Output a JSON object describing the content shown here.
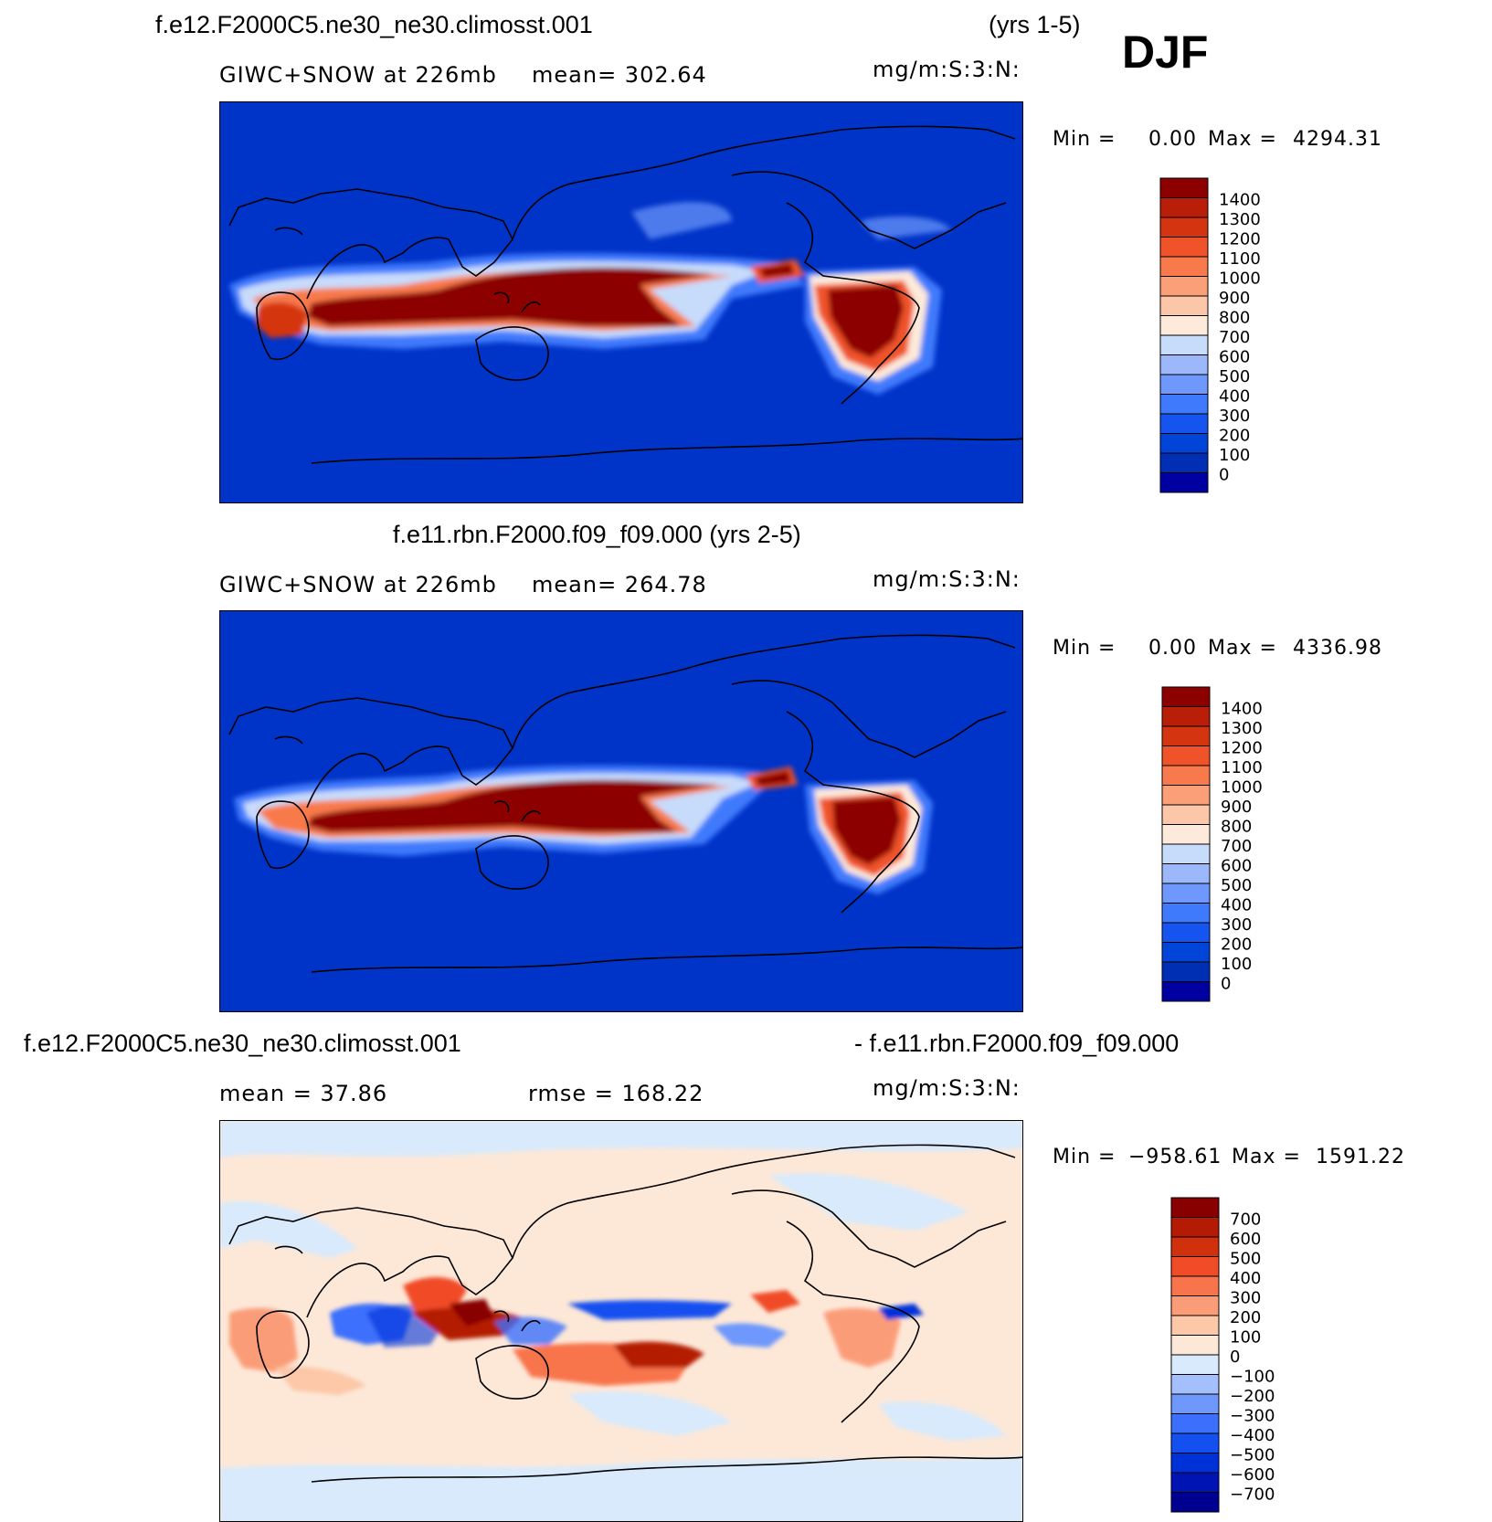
{
  "season": "DJF",
  "panels": [
    {
      "id": "p1",
      "case_title": "f.e12.F2000C5.ne30_ne30.climosst.001",
      "years": "(yrs 1-5)",
      "left_label": "GIWC+SNOW at 226mb",
      "center_label": "mean= 302.64",
      "units": "mg/m:S:3:N:",
      "min_label": "Min =",
      "min_value": "0.00",
      "max_label": "Max =",
      "max_value": "4294.31",
      "colorbar": {
        "colors": [
          "#0000a0",
          "#002fb4",
          "#0044d8",
          "#1654f0",
          "#3f7afc",
          "#6e98fc",
          "#9cb8fb",
          "#c7dcfb",
          "#fdeada",
          "#fcc6a8",
          "#fb9f78",
          "#f87a4c",
          "#f0522a",
          "#d43410",
          "#b81e08",
          "#8c0000"
        ],
        "labels": [
          "0",
          "100",
          "200",
          "300",
          "400",
          "500",
          "600",
          "700",
          "800",
          "900",
          "1000",
          "1100",
          "1200",
          "1300",
          "1400"
        ]
      }
    },
    {
      "id": "p2",
      "case_title": "f.e11.rbn.F2000.f09_f09.000 (yrs 2-5)",
      "left_label": "GIWC+SNOW at 226mb",
      "center_label": "mean= 264.78",
      "units": "mg/m:S:3:N:",
      "min_label": "Min =",
      "min_value": "0.00",
      "max_label": "Max =",
      "max_value": "4336.98",
      "colorbar": {
        "colors": [
          "#0000a0",
          "#002fb4",
          "#0044d8",
          "#1654f0",
          "#3f7afc",
          "#6e98fc",
          "#9cb8fb",
          "#c7dcfb",
          "#fdeada",
          "#fcc6a8",
          "#fb9f78",
          "#f87a4c",
          "#f0522a",
          "#d43410",
          "#b81e08",
          "#8c0000"
        ],
        "labels": [
          "0",
          "100",
          "200",
          "300",
          "400",
          "500",
          "600",
          "700",
          "800",
          "900",
          "1000",
          "1100",
          "1200",
          "1300",
          "1400"
        ]
      }
    },
    {
      "id": "p3",
      "case_title": "f.e12.F2000C5.ne30_ne30.climosst.001",
      "case_title_right": "- f.e11.rbn.F2000.f09_f09.000",
      "left_label": "mean = 37.86",
      "center_label": "rmse = 168.22",
      "units": "mg/m:S:3:N:",
      "min_label": "Min =",
      "min_value": "−958.61",
      "max_label": "Max =",
      "max_value": "1591.22",
      "colorbar": {
        "colors": [
          "#000090",
          "#0014b4",
          "#0030d8",
          "#1450f0",
          "#3c70fc",
          "#6e98fc",
          "#a4c0fc",
          "#d8eafc",
          "#fde8d8",
          "#fcc8a8",
          "#fb9c78",
          "#f8744c",
          "#f04c28",
          "#d0300c",
          "#b41a04",
          "#880000"
        ],
        "labels": [
          "−700",
          "−600",
          "−500",
          "−400",
          "−300",
          "−200",
          "−100",
          "0",
          "100",
          "200",
          "300",
          "400",
          "500",
          "600",
          "700"
        ]
      }
    }
  ]
}
